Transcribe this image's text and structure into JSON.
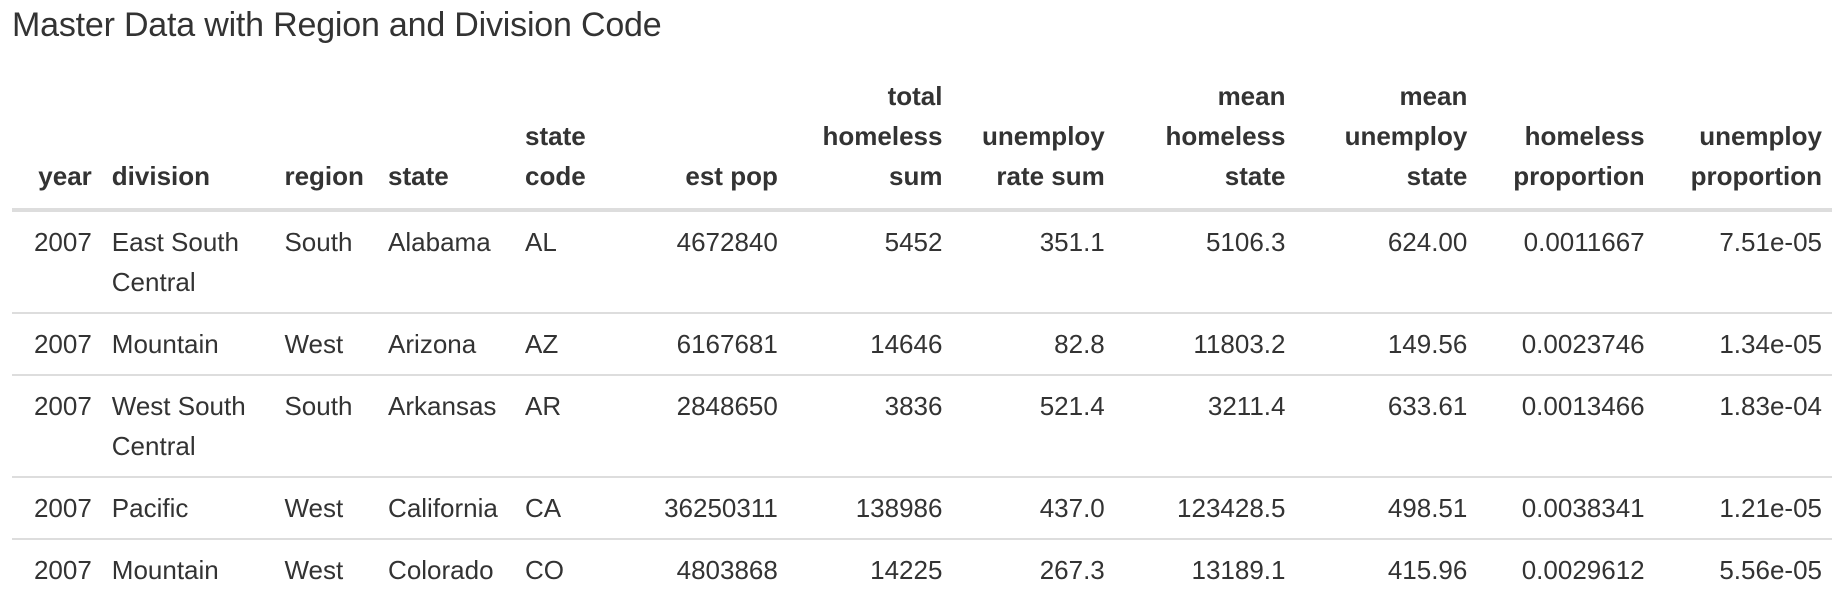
{
  "caption": "Master Data with Region and Division Code",
  "columns": [
    {
      "lines": [
        "year"
      ],
      "align": "r"
    },
    {
      "lines": [
        "division"
      ],
      "align": "l"
    },
    {
      "lines": [
        "region"
      ],
      "align": "l"
    },
    {
      "lines": [
        "state"
      ],
      "align": "l"
    },
    {
      "lines": [
        "state",
        "code"
      ],
      "align": "l"
    },
    {
      "lines": [
        "est pop"
      ],
      "align": "r"
    },
    {
      "lines": [
        "total",
        "homeless",
        "sum"
      ],
      "align": "r"
    },
    {
      "lines": [
        "unemploy",
        "rate sum"
      ],
      "align": "r"
    },
    {
      "lines": [
        "mean",
        "homeless",
        "state"
      ],
      "align": "r"
    },
    {
      "lines": [
        "mean",
        "unemploy",
        "state"
      ],
      "align": "r"
    },
    {
      "lines": [
        "homeless",
        "proportion"
      ],
      "align": "r"
    },
    {
      "lines": [
        "unemploy",
        "proportion"
      ],
      "align": "r"
    }
  ],
  "rows": [
    {
      "year": "2007",
      "division": [
        "East South",
        "Central"
      ],
      "region": "South",
      "state": "Alabama",
      "state_code": "AL",
      "est_pop": "4672840",
      "total_homeless_sum": "5452",
      "unemploy_rate_sum": "351.1",
      "mean_homeless_state": "5106.3",
      "mean_unemploy_state": "624.00",
      "homeless_proportion": "0.0011667",
      "unemploy_proportion": "7.51e-05"
    },
    {
      "year": "2007",
      "division": [
        "Mountain"
      ],
      "region": "West",
      "state": "Arizona",
      "state_code": "AZ",
      "est_pop": "6167681",
      "total_homeless_sum": "14646",
      "unemploy_rate_sum": "82.8",
      "mean_homeless_state": "11803.2",
      "mean_unemploy_state": "149.56",
      "homeless_proportion": "0.0023746",
      "unemploy_proportion": "1.34e-05"
    },
    {
      "year": "2007",
      "division": [
        "West South",
        "Central"
      ],
      "region": "South",
      "state": "Arkansas",
      "state_code": "AR",
      "est_pop": "2848650",
      "total_homeless_sum": "3836",
      "unemploy_rate_sum": "521.4",
      "mean_homeless_state": "3211.4",
      "mean_unemploy_state": "633.61",
      "homeless_proportion": "0.0013466",
      "unemploy_proportion": "1.83e-04"
    },
    {
      "year": "2007",
      "division": [
        "Pacific"
      ],
      "region": "West",
      "state": "California",
      "state_code": "CA",
      "est_pop": "36250311",
      "total_homeless_sum": "138986",
      "unemploy_rate_sum": "437.0",
      "mean_homeless_state": "123428.5",
      "mean_unemploy_state": "498.51",
      "homeless_proportion": "0.0038341",
      "unemploy_proportion": "1.21e-05"
    },
    {
      "year": "2007",
      "division": [
        "Mountain"
      ],
      "region": "West",
      "state": "Colorado",
      "state_code": "CO",
      "est_pop": "4803868",
      "total_homeless_sum": "14225",
      "unemploy_rate_sum": "267.3",
      "mean_homeless_state": "13189.1",
      "mean_unemploy_state": "415.96",
      "homeless_proportion": "0.0029612",
      "unemploy_proportion": "5.56e-05"
    }
  ]
}
